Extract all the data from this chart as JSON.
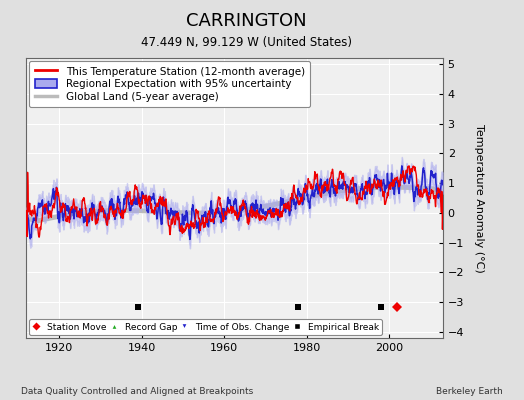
{
  "title": "CARRINGTON",
  "subtitle": "47.449 N, 99.129 W (United States)",
  "ylabel": "Temperature Anomaly (°C)",
  "xlabel_left": "Data Quality Controlled and Aligned at Breakpoints",
  "xlabel_right": "Berkeley Earth",
  "ylim": [
    -4.2,
    5.2
  ],
  "xlim": [
    1912,
    2013
  ],
  "yticks": [
    -4,
    -3,
    -2,
    -1,
    0,
    1,
    2,
    3,
    4,
    5
  ],
  "xticks": [
    1920,
    1940,
    1960,
    1980,
    2000
  ],
  "background_color": "#e0e0e0",
  "plot_bg_color": "#f0f0f0",
  "grid_color": "#cccccc",
  "station_line_color": "#ee0000",
  "regional_line_color": "#2222cc",
  "regional_fill_color": "#aaaaee",
  "global_line_color": "#bbbbbb",
  "title_fontsize": 13,
  "subtitle_fontsize": 8.5,
  "legend_fontsize": 7.5,
  "axis_fontsize": 8,
  "station_moves": [
    2002.0
  ],
  "record_gaps": [],
  "time_of_obs": [],
  "empirical_breaks": [
    1939.0,
    1978.0,
    1998.0
  ],
  "seed": 12345
}
